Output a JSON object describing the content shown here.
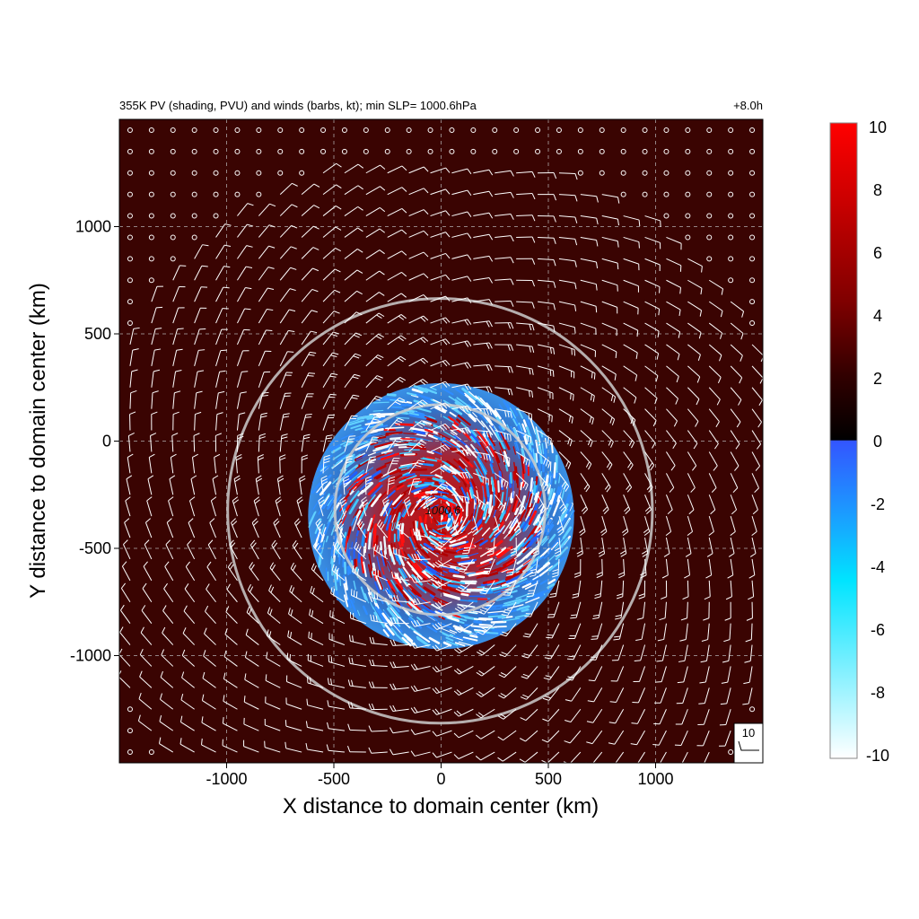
{
  "figure": {
    "title_left": "355K PV (shading, PVU) and winds (barbs, kt); min SLP= 1000.6hPa",
    "title_right": "+8.0h",
    "slp_label": "1000.6",
    "reference_barb_label": "10"
  },
  "chart_data": {
    "type": "heatmap",
    "title": "355K PV (shading, PVU) and winds (barbs, kt); min SLP= 1000.6hPa",
    "time_label": "+8.0h",
    "xlabel": "X distance to domain center (km)",
    "ylabel": "Y distance to domain center (km)",
    "xlim": [
      -1500,
      1500
    ],
    "ylim": [
      -1500,
      1500
    ],
    "x_ticks": [
      -1000,
      -500,
      0,
      500,
      1000
    ],
    "y_ticks": [
      -1000,
      -500,
      0,
      500,
      1000
    ],
    "grid": true,
    "colorbar": {
      "label_units": "PVU",
      "range": [
        -10,
        10
      ],
      "ticks": [
        10,
        8,
        6,
        4,
        2,
        0,
        -2,
        -4,
        -6,
        -8,
        -10
      ],
      "colors": {
        "max": "#ff0000",
        "zero_pos": "#000000",
        "zero_neg": "#3355ff",
        "mid_neg": "#00ddff",
        "min": "#ffffff"
      }
    },
    "field_background_color": "#3a0402",
    "storm_center_km": [
      0,
      -350
    ],
    "min_slp_hPa": 1000.6,
    "disturbed_region_radius_km": 620,
    "range_rings_km": [
      {
        "center": [
          -5,
          -320
        ],
        "radius": 490
      },
      {
        "center": [
          -5,
          -325
        ],
        "radius": 990
      }
    ],
    "reference_barb_kt": 10
  }
}
